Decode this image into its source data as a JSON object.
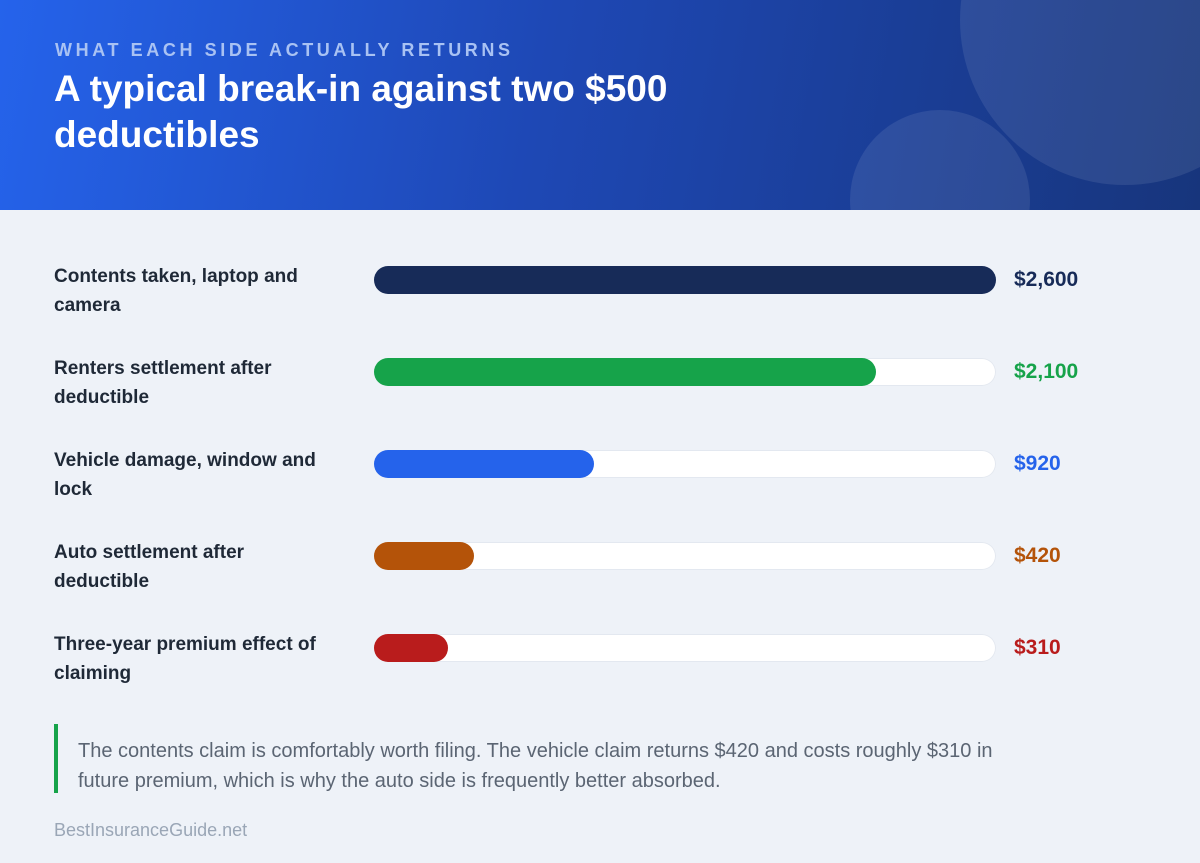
{
  "header": {
    "eyebrow": "WHAT EACH SIDE ACTUALLY RETURNS",
    "title": "A typical break-in against two $500 deductibles"
  },
  "chart_data": {
    "type": "bar",
    "orientation": "horizontal",
    "title": "A typical break-in against two $500 deductibles",
    "xlim": [
      0,
      2600
    ],
    "grid": false,
    "categories": [
      "Contents taken, laptop and camera",
      "Renters settlement after deductible",
      "Vehicle damage, window and lock",
      "Auto settlement after deductible",
      "Three-year premium effect of claiming"
    ],
    "values": [
      2600,
      2100,
      920,
      420,
      310
    ],
    "value_labels": [
      "$2,600",
      "$2,100",
      "$920",
      "$420",
      "$310"
    ],
    "colors": [
      "#172b58",
      "#16a34a",
      "#2563eb",
      "#b45309",
      "#b91c1c"
    ]
  },
  "note": "The contents claim is comfortably worth filing. The vehicle claim returns $420 and costs roughly $310 in future premium, which is why the auto side is frequently better absorbed.",
  "footer": "BestInsuranceGuide.net"
}
